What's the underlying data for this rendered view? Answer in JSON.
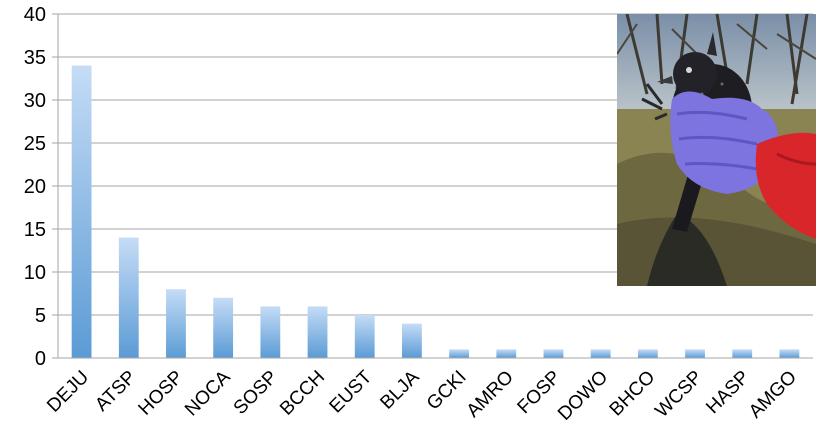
{
  "chart_data": {
    "type": "bar",
    "categories": [
      "DEJU",
      "ATSP",
      "HOSP",
      "NOCA",
      "SOSP",
      "BCCH",
      "EUST",
      "BLJA",
      "GCKI",
      "AMRO",
      "FOSP",
      "DOWO",
      "BHCO",
      "WCSP",
      "HASP",
      "AMGO"
    ],
    "values": [
      34,
      14,
      8,
      7,
      6,
      6,
      5,
      4,
      1,
      1,
      1,
      1,
      1,
      1,
      1,
      1
    ],
    "title": "",
    "xlabel": "",
    "ylabel": "",
    "ylim": [
      0,
      40
    ],
    "yticks": [
      0,
      5,
      10,
      15,
      20,
      25,
      30,
      35,
      40
    ],
    "grid": true,
    "legend": "none",
    "bar_color_top": "#c5dcf6",
    "bar_color_bottom": "#5b9bd5",
    "gridline_color": "#a6a6a6"
  },
  "photo": {
    "icon": "bird-in-gloved-hand-photo"
  }
}
